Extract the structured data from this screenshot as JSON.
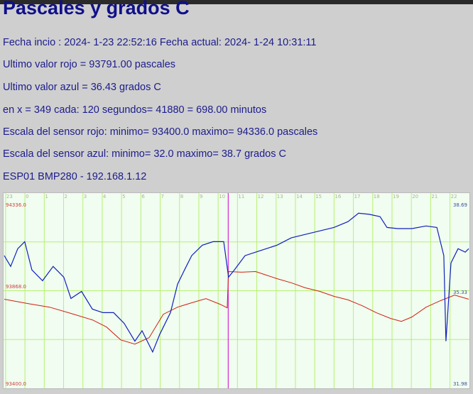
{
  "title": "Pascales y grados C",
  "lines": [
    "Fecha incio : 2024- 1-23 22:52:16 Fecha actual: 2024- 1-24 10:31:11",
    "Ultimo valor rojo = 93791.00 pascales",
    "Ultimo valor azul = 36.43 grados C",
    "en x = 349 cada: 120 segundos= 41880 = 698.00 minutos",
    "Escala del sensor rojo: minimo= 93400.0 maximo= 94336.0 pascales",
    "Escala del sensor azul: minimo= 32.0 maximo= 38.7 grados C",
    "ESP01 BMP280 - 192.168.1.12"
  ],
  "chart_data": {
    "type": "line",
    "xlim": [
      22.93,
      46.97
    ],
    "x_ticks": [
      23,
      24,
      25,
      26,
      27,
      28,
      29,
      30,
      31,
      32,
      33,
      34,
      35,
      36,
      37,
      38,
      39,
      40,
      41,
      42,
      43,
      44,
      45,
      46
    ],
    "x_tick_labels": [
      "23",
      "0",
      "1",
      "2",
      "3",
      "4",
      "5",
      "6",
      "7",
      "8",
      "9",
      "10",
      "11",
      "12",
      "13",
      "14",
      "15",
      "16",
      "17",
      "18",
      "19",
      "20",
      "21",
      "22"
    ],
    "current_marker_x": 34.52,
    "grid": true,
    "left_axis": {
      "ylim": [
        93400.0,
        94336.0
      ],
      "labels": [
        "94336.0",
        "93868.0",
        "93400.0"
      ]
    },
    "right_axis": {
      "ylim": [
        31.98,
        38.69
      ],
      "labels": [
        "38.69",
        "35.33",
        "31.98"
      ]
    },
    "colors": {
      "red": "#d02010",
      "blue": "#1020c0",
      "marker": "#d000d0",
      "grid": "#b8f070"
    },
    "series": [
      {
        "axis": "left",
        "color": "#d02010",
        "x": [
          22.93,
          24.18,
          25.28,
          26.38,
          27.49,
          28.22,
          28.96,
          29.69,
          30.43,
          31.16,
          31.9,
          32.63,
          33.37,
          34.1,
          34.47,
          34.54,
          35.21,
          35.94,
          36.49,
          37.04,
          37.78,
          38.51,
          39.25,
          39.99,
          40.72,
          41.46,
          42.19,
          42.93,
          43.48,
          44.03,
          44.76,
          45.5,
          46.24,
          46.97
        ],
        "y": [
          93827,
          93806,
          93789,
          93759,
          93728,
          93694,
          93632,
          93612,
          93643,
          93755,
          93789,
          93810,
          93830,
          93803,
          93786,
          93960,
          93957,
          93960,
          93943,
          93926,
          93906,
          93882,
          93865,
          93841,
          93824,
          93796,
          93762,
          93735,
          93721,
          93742,
          93789,
          93820,
          93847,
          93827
        ]
      },
      {
        "axis": "right",
        "color": "#1020c0",
        "x": [
          22.93,
          23.26,
          23.63,
          23.99,
          24.36,
          24.91,
          25.46,
          26.01,
          26.38,
          26.93,
          27.49,
          28.04,
          28.59,
          29.14,
          29.69,
          30.06,
          30.61,
          30.98,
          31.53,
          31.9,
          32.26,
          32.63,
          33.18,
          33.74,
          34.29,
          34.54,
          34.84,
          35.39,
          35.94,
          36.49,
          37.04,
          37.78,
          38.51,
          39.25,
          39.99,
          40.72,
          41.27,
          41.82,
          42.38,
          42.74,
          43.29,
          44.03,
          44.76,
          45.32,
          45.68,
          45.79,
          46.05,
          46.42,
          46.79,
          46.97
        ],
        "y": [
          36.54,
          36.17,
          36.78,
          37.02,
          36.05,
          35.68,
          36.17,
          35.8,
          35.07,
          35.31,
          34.7,
          34.58,
          34.58,
          34.21,
          33.6,
          33.96,
          33.23,
          33.84,
          34.58,
          35.56,
          36.05,
          36.54,
          36.9,
          37.02,
          37.02,
          35.8,
          36.05,
          36.54,
          36.66,
          36.78,
          36.9,
          37.15,
          37.27,
          37.39,
          37.51,
          37.71,
          38.0,
          37.96,
          37.88,
          37.51,
          37.47,
          37.47,
          37.56,
          37.51,
          36.54,
          33.6,
          36.29,
          36.78,
          36.66,
          36.78
        ]
      }
    ]
  }
}
